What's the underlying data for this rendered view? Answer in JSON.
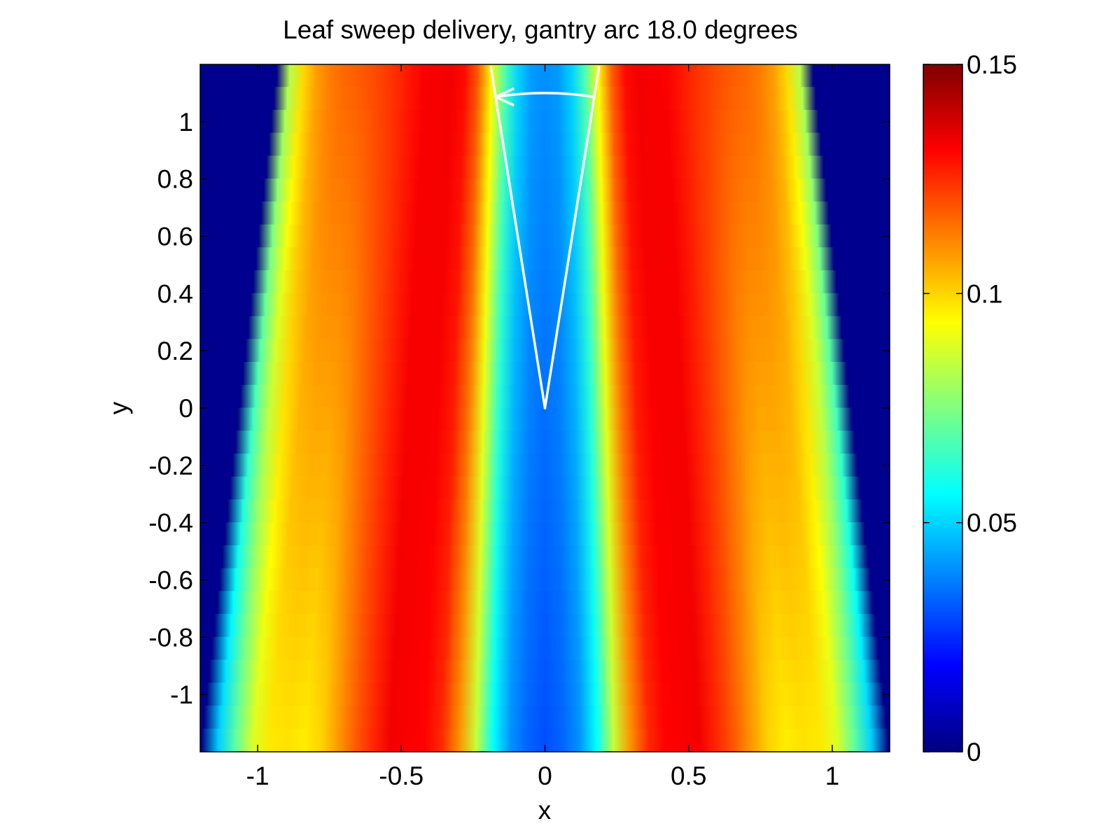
{
  "chart_data": {
    "type": "heatmap",
    "title": "Leaf sweep delivery, gantry arc 18.0 degrees",
    "xlabel": "x",
    "ylabel": "y",
    "xlim": [
      -1.2,
      1.2
    ],
    "ylim": [
      -1.2,
      1.2
    ],
    "xticks": [
      -1,
      -0.5,
      0,
      0.5,
      1
    ],
    "xtick_labels": [
      "-1",
      "-0.5",
      "0",
      "0.5",
      "1"
    ],
    "yticks": [
      1,
      0.8,
      0.6,
      0.4,
      0.2,
      0,
      -0.2,
      -0.4,
      -0.6,
      -0.8,
      -1
    ],
    "ytick_labels": [
      "1",
      "0.8",
      "0.6",
      "0.4",
      "0.2",
      "0",
      "-0.2",
      "-0.4",
      "-0.6",
      "-0.8",
      "-1"
    ],
    "colormap": "jet",
    "clim": [
      0,
      0.15
    ],
    "colorbar_ticks": [
      0,
      0.05,
      0.1,
      0.15
    ],
    "colorbar_tick_labels": [
      "0",
      "0.05",
      "0.1",
      "0.15"
    ],
    "gantry_arc_degrees": 18.0,
    "arc_apex": [
      0,
      0
    ],
    "arc_ray_end_y": 1.19,
    "arc_arrow_y": 1.1,
    "field_edges": {
      "top": {
        "y": 1.2,
        "left": -0.93,
        "right": 0.93
      },
      "bottom": {
        "y": -1.2,
        "left": -1.2,
        "right": 1.2
      }
    },
    "profile_bottom": {
      "u": [
        0.0,
        0.06,
        0.1,
        0.15,
        0.2,
        0.25,
        0.3,
        0.35,
        0.45,
        0.55,
        0.65,
        0.7,
        0.76,
        0.82,
        0.88,
        0.92,
        0.96,
        0.99,
        1.0
      ],
      "value": [
        0.03,
        0.034,
        0.04,
        0.056,
        0.085,
        0.11,
        0.125,
        0.131,
        0.133,
        0.118,
        0.1,
        0.096,
        0.098,
        0.096,
        0.08,
        0.06,
        0.045,
        0.025,
        0.0
      ]
    },
    "profile_top": {
      "u": [
        0.0,
        0.06,
        0.1,
        0.15,
        0.2,
        0.25,
        0.3,
        0.35,
        0.45,
        0.55,
        0.65,
        0.7,
        0.76,
        0.82,
        0.88,
        0.92,
        0.96,
        0.99,
        1.0
      ],
      "value": [
        0.04,
        0.042,
        0.05,
        0.068,
        0.095,
        0.118,
        0.13,
        0.133,
        0.132,
        0.125,
        0.12,
        0.118,
        0.116,
        0.112,
        0.105,
        0.095,
        0.08,
        0.06,
        0.0
      ]
    }
  }
}
